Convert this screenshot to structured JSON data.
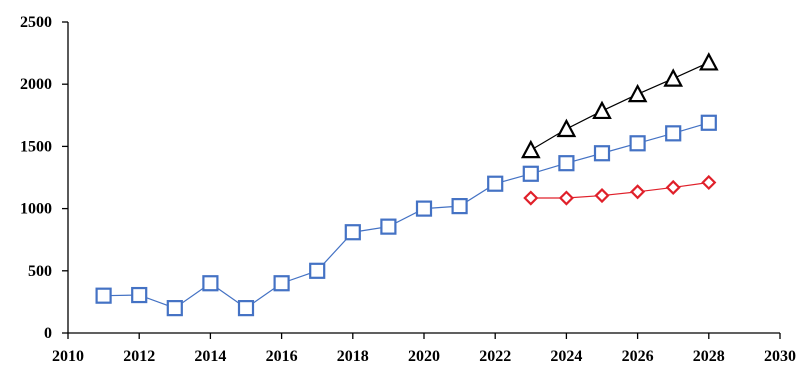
{
  "chart_data": {
    "type": "line",
    "title": "",
    "xlabel": "",
    "ylabel": "",
    "xlim": [
      2010,
      2030
    ],
    "ylim": [
      0,
      2500
    ],
    "xticks": [
      2010,
      2012,
      2014,
      2016,
      2018,
      2020,
      2022,
      2024,
      2026,
      2028,
      2030
    ],
    "yticks": [
      0,
      500,
      1000,
      1500,
      2000,
      2500
    ],
    "grid": false,
    "legend": "none",
    "series": [
      {
        "marker": "square",
        "color": "#4472C4",
        "points": [
          [
            2011,
            300
          ],
          [
            2012,
            305
          ],
          [
            2013,
            200
          ],
          [
            2014,
            400
          ],
          [
            2015,
            200
          ],
          [
            2016,
            400
          ],
          [
            2017,
            500
          ],
          [
            2018,
            810
          ],
          [
            2019,
            855
          ],
          [
            2020,
            1000
          ],
          [
            2021,
            1020
          ],
          [
            2022,
            1200
          ],
          [
            2023,
            1280
          ],
          [
            2024,
            1365
          ],
          [
            2025,
            1445
          ],
          [
            2026,
            1525
          ],
          [
            2027,
            1605
          ],
          [
            2028,
            1690
          ]
        ]
      },
      {
        "marker": "triangle",
        "color": "#000000",
        "points": [
          [
            2023,
            1470
          ],
          [
            2024,
            1640
          ],
          [
            2025,
            1785
          ],
          [
            2026,
            1920
          ],
          [
            2027,
            2045
          ],
          [
            2028,
            2175
          ]
        ]
      },
      {
        "marker": "diamond",
        "color": "#E0202A",
        "points": [
          [
            2023,
            1085
          ],
          [
            2024,
            1085
          ],
          [
            2025,
            1105
          ],
          [
            2026,
            1135
          ],
          [
            2027,
            1170
          ],
          [
            2028,
            1210
          ]
        ]
      }
    ]
  }
}
